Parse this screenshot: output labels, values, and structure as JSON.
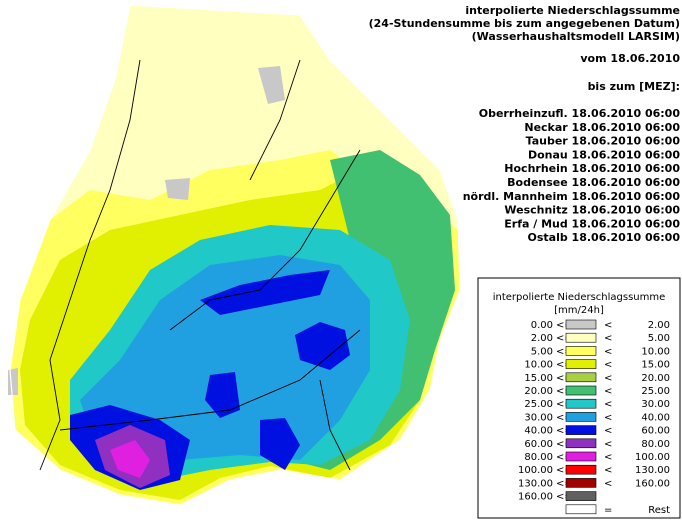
{
  "header": {
    "title_lines": [
      "interpolierte Niederschlagssumme",
      "(24-Stundensumme bis zum angegebenen Datum)",
      "(Wasserhaushaltsmodell LARSIM)"
    ],
    "from": "vom 18.06.2010",
    "until": "bis zum [MEZ]:"
  },
  "basins": [
    "Oberrheinzufl. 18.06.2010 06:00",
    "Neckar 18.06.2010 06:00",
    "Tauber 18.06.2010 06:00",
    "Donau 18.06.2010 06:00",
    "Hochrhein 18.06.2010 06:00",
    "Bodensee 18.06.2010 06:00",
    "nördl. Mannheim 18.06.2010 06:00",
    "Weschnitz 18.06.2010 06:00",
    "Erfa / Mud 18.06.2010 06:00",
    "Ostalb 18.06.2010 06:00"
  ],
  "legend": {
    "title": "interpolierte Niederschlagssumme",
    "unit": "[mm/24h]",
    "rows": [
      {
        "low": "0.00",
        "op1": "<=",
        "op2": "<",
        "high": "2.00",
        "color": "#c8c8c8"
      },
      {
        "low": "2.00",
        "op1": "<=",
        "op2": "<",
        "high": "5.00",
        "color": "#ffffc0"
      },
      {
        "low": "5.00",
        "op1": "<=",
        "op2": "<",
        "high": "10.00",
        "color": "#ffff60"
      },
      {
        "low": "10.00",
        "op1": "<=",
        "op2": "<",
        "high": "15.00",
        "color": "#e0f000"
      },
      {
        "low": "15.00",
        "op1": "<=",
        "op2": "<",
        "high": "20.00",
        "color": "#a8d040"
      },
      {
        "low": "20.00",
        "op1": "<=",
        "op2": "<",
        "high": "25.00",
        "color": "#40c070"
      },
      {
        "low": "25.00",
        "op1": "<=",
        "op2": "<",
        "high": "30.00",
        "color": "#20c8c8"
      },
      {
        "low": "30.00",
        "op1": "<=",
        "op2": "<",
        "high": "40.00",
        "color": "#20a0e0"
      },
      {
        "low": "40.00",
        "op1": "<=",
        "op2": "<",
        "high": "60.00",
        "color": "#0010e0"
      },
      {
        "low": "60.00",
        "op1": "<=",
        "op2": "<",
        "high": "80.00",
        "color": "#9030c0"
      },
      {
        "low": "80.00",
        "op1": "<=",
        "op2": "<",
        "high": "100.00",
        "color": "#e020e0"
      },
      {
        "low": "100.00",
        "op1": "<=",
        "op2": "<",
        "high": "130.00",
        "color": "#ff0000"
      },
      {
        "low": "130.00",
        "op1": "<=",
        "op2": "<",
        "high": "160.00",
        "color": "#a00000"
      },
      {
        "low": "160.00",
        "op1": "<=",
        "color": "#606060"
      },
      {
        "op2": "=",
        "high": "Rest",
        "color": "#ffffff"
      }
    ]
  }
}
